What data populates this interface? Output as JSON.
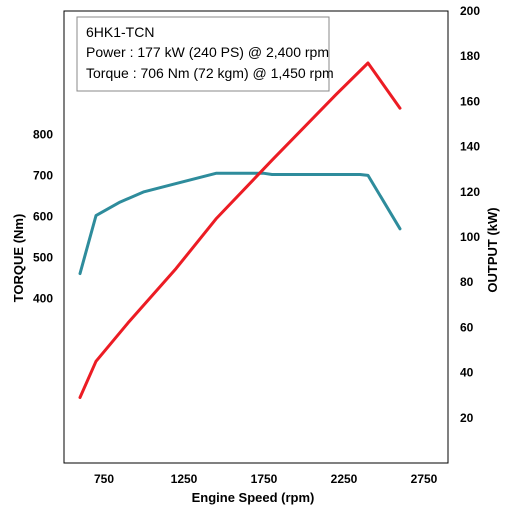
{
  "chart_data": {
    "type": "line",
    "xlabel": "Engine Speed (rpm)",
    "ylabel_left": "TORQUE (Nm)",
    "ylabel_right": "OUTPUT (kW)",
    "x_ticks": [
      750,
      1250,
      1750,
      2250,
      2750
    ],
    "y_left_ticks": [
      400,
      500,
      600,
      700,
      800
    ],
    "y_right_ticks": [
      20,
      40,
      60,
      80,
      100,
      120,
      140,
      160,
      180,
      200
    ],
    "xlim": [
      500,
      2900
    ],
    "ylim_left": [
      0,
      1100
    ],
    "ylim_right": [
      0,
      200
    ],
    "grid": false,
    "legend_box": {
      "title": "6HK1-TCN",
      "line1": "Power  : 177 kW (240 PS) @ 2,400 rpm",
      "line2": "Torque : 706 Nm (72 kgm) @ 1,450 rpm"
    },
    "series": [
      {
        "axis": "left",
        "color": "#2e8c9c",
        "x": [
          600,
          700,
          850,
          1000,
          1200,
          1450,
          1600,
          1750,
          1800,
          2000,
          2200,
          2350,
          2400,
          2600
        ],
        "y": [
          461,
          602,
          635,
          660,
          680,
          705,
          705,
          705,
          702,
          702,
          702,
          702,
          700,
          570
        ]
      },
      {
        "axis": "right",
        "color": "#ec1c24",
        "x": [
          600,
          700,
          900,
          1200,
          1450,
          1800,
          2200,
          2400,
          2600
        ],
        "y": [
          29,
          45,
          62,
          86,
          108,
          134,
          163,
          177,
          157
        ]
      }
    ]
  }
}
